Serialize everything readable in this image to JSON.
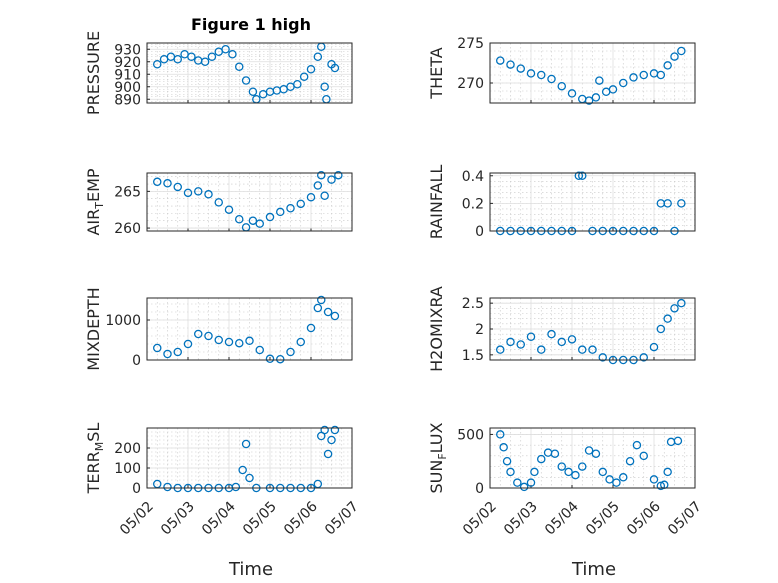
{
  "figure": {
    "title": "Figure 1 high",
    "xlabel": "Time",
    "x_tick_labels": [
      "05/02",
      "05/03",
      "05/04",
      "05/05",
      "05/06",
      "05/07"
    ]
  },
  "chart_data": [
    {
      "type": "scatter",
      "ylabel": "PRESSURE",
      "title": "Figure 1 high",
      "xlim": [
        "05/02 00:00",
        "05/07 00:00"
      ],
      "ylim": [
        887,
        935
      ],
      "yticks": [
        890,
        900,
        910,
        920,
        930
      ],
      "grid": true,
      "marker": "circle",
      "color": "#0072bd",
      "points": [
        [
          "05/02 06:00",
          918
        ],
        [
          "05/02 10:00",
          922
        ],
        [
          "05/02 14:00",
          924
        ],
        [
          "05/02 18:00",
          922
        ],
        [
          "05/02 22:00",
          926
        ],
        [
          "05/03 02:00",
          924
        ],
        [
          "05/03 06:00",
          921
        ],
        [
          "05/03 10:00",
          920
        ],
        [
          "05/03 14:00",
          924
        ],
        [
          "05/03 18:00",
          928
        ],
        [
          "05/03 22:00",
          930
        ],
        [
          "05/04 02:00",
          926
        ],
        [
          "05/04 06:00",
          916
        ],
        [
          "05/04 10:00",
          905
        ],
        [
          "05/04 14:00",
          896
        ],
        [
          "05/04 16:00",
          890
        ],
        [
          "05/04 20:00",
          894
        ],
        [
          "05/05 00:00",
          896
        ],
        [
          "05/05 04:00",
          897
        ],
        [
          "05/05 08:00",
          898
        ],
        [
          "05/05 12:00",
          900
        ],
        [
          "05/05 16:00",
          902
        ],
        [
          "05/05 20:00",
          908
        ],
        [
          "05/06 00:00",
          914
        ],
        [
          "05/06 04:00",
          924
        ],
        [
          "05/06 06:00",
          932
        ],
        [
          "05/06 08:00",
          900
        ],
        [
          "05/06 09:00",
          890
        ],
        [
          "05/06 12:00",
          918
        ],
        [
          "05/06 14:00",
          915
        ]
      ]
    },
    {
      "type": "scatter",
      "ylabel": "THETA",
      "xlim": [
        "05/02 00:00",
        "05/07 00:00"
      ],
      "ylim": [
        267.5,
        275
      ],
      "yticks": [
        270,
        275
      ],
      "grid": true,
      "marker": "circle",
      "color": "#0072bd",
      "points": [
        [
          "05/02 06:00",
          272.8
        ],
        [
          "05/02 12:00",
          272.3
        ],
        [
          "05/02 18:00",
          271.8
        ],
        [
          "05/03 00:00",
          271.2
        ],
        [
          "05/03 06:00",
          271.0
        ],
        [
          "05/03 12:00",
          270.5
        ],
        [
          "05/03 18:00",
          269.6
        ],
        [
          "05/04 00:00",
          268.7
        ],
        [
          "05/04 06:00",
          268.0
        ],
        [
          "05/04 10:00",
          267.8
        ],
        [
          "05/04 14:00",
          268.2
        ],
        [
          "05/04 16:00",
          270.3
        ],
        [
          "05/04 20:00",
          268.9
        ],
        [
          "05/05 00:00",
          269.2
        ],
        [
          "05/05 06:00",
          270.0
        ],
        [
          "05/05 12:00",
          270.7
        ],
        [
          "05/05 18:00",
          271.0
        ],
        [
          "05/06 00:00",
          271.2
        ],
        [
          "05/06 04:00",
          271.0
        ],
        [
          "05/06 08:00",
          272.2
        ],
        [
          "05/06 12:00",
          273.3
        ],
        [
          "05/06 16:00",
          274.0
        ]
      ]
    },
    {
      "type": "scatter",
      "ylabel": "AIR_TEMP",
      "xlim": [
        "05/02 00:00",
        "05/07 00:00"
      ],
      "ylim": [
        259.6,
        267.5
      ],
      "yticks": [
        260,
        265
      ],
      "grid": true,
      "marker": "circle",
      "color": "#0072bd",
      "points": [
        [
          "05/02 06:00",
          266.3
        ],
        [
          "05/02 12:00",
          266.1
        ],
        [
          "05/02 18:00",
          265.6
        ],
        [
          "05/03 00:00",
          264.8
        ],
        [
          "05/03 06:00",
          265.0
        ],
        [
          "05/03 12:00",
          264.6
        ],
        [
          "05/03 18:00",
          263.5
        ],
        [
          "05/04 00:00",
          262.5
        ],
        [
          "05/04 06:00",
          261.2
        ],
        [
          "05/04 10:00",
          260.1
        ],
        [
          "05/04 14:00",
          261.0
        ],
        [
          "05/04 18:00",
          260.6
        ],
        [
          "05/05 00:00",
          261.5
        ],
        [
          "05/05 06:00",
          262.2
        ],
        [
          "05/05 12:00",
          262.7
        ],
        [
          "05/05 18:00",
          263.3
        ],
        [
          "05/06 00:00",
          264.2
        ],
        [
          "05/06 04:00",
          265.8
        ],
        [
          "05/06 06:00",
          267.2
        ],
        [
          "05/06 08:00",
          264.4
        ],
        [
          "05/06 12:00",
          266.6
        ],
        [
          "05/06 16:00",
          267.2
        ]
      ]
    },
    {
      "type": "scatter",
      "ylabel": "RAINFALL",
      "xlim": [
        "05/02 00:00",
        "05/07 00:00"
      ],
      "ylim": [
        0,
        0.42
      ],
      "yticks": [
        0,
        0.2,
        0.4
      ],
      "grid": true,
      "marker": "circle",
      "color": "#0072bd",
      "points": [
        [
          "05/02 06:00",
          0
        ],
        [
          "05/02 12:00",
          0
        ],
        [
          "05/02 18:00",
          0
        ],
        [
          "05/03 00:00",
          0
        ],
        [
          "05/03 06:00",
          0
        ],
        [
          "05/03 12:00",
          0
        ],
        [
          "05/03 18:00",
          0
        ],
        [
          "05/04 00:00",
          0
        ],
        [
          "05/04 04:00",
          0.4
        ],
        [
          "05/04 06:00",
          0.4
        ],
        [
          "05/04 12:00",
          0
        ],
        [
          "05/04 18:00",
          0
        ],
        [
          "05/05 00:00",
          0
        ],
        [
          "05/05 06:00",
          0
        ],
        [
          "05/05 12:00",
          0
        ],
        [
          "05/05 18:00",
          0
        ],
        [
          "05/06 00:00",
          0
        ],
        [
          "05/06 04:00",
          0.2
        ],
        [
          "05/06 08:00",
          0.2
        ],
        [
          "05/06 12:00",
          0
        ],
        [
          "05/06 16:00",
          0.2
        ]
      ]
    },
    {
      "type": "scatter",
      "ylabel": "MIXDEPTH",
      "xlim": [
        "05/02 00:00",
        "05/07 00:00"
      ],
      "ylim": [
        0,
        1550
      ],
      "yticks": [
        0,
        1000
      ],
      "grid": true,
      "marker": "circle",
      "color": "#0072bd",
      "points": [
        [
          "05/02 06:00",
          300
        ],
        [
          "05/02 12:00",
          150
        ],
        [
          "05/02 18:00",
          200
        ],
        [
          "05/03 00:00",
          400
        ],
        [
          "05/03 06:00",
          650
        ],
        [
          "05/03 12:00",
          600
        ],
        [
          "05/03 18:00",
          500
        ],
        [
          "05/04 00:00",
          450
        ],
        [
          "05/04 06:00",
          420
        ],
        [
          "05/04 12:00",
          480
        ],
        [
          "05/04 18:00",
          250
        ],
        [
          "05/05 00:00",
          30
        ],
        [
          "05/05 06:00",
          20
        ],
        [
          "05/05 12:00",
          200
        ],
        [
          "05/05 18:00",
          450
        ],
        [
          "05/06 00:00",
          800
        ],
        [
          "05/06 04:00",
          1300
        ],
        [
          "05/06 06:00",
          1500
        ],
        [
          "05/06 10:00",
          1200
        ],
        [
          "05/06 14:00",
          1100
        ]
      ]
    },
    {
      "type": "scatter",
      "ylabel": "H2OMIXRA",
      "xlim": [
        "05/02 00:00",
        "05/07 00:00"
      ],
      "ylim": [
        1.4,
        2.6
      ],
      "yticks": [
        1.5,
        2,
        2.5
      ],
      "grid": true,
      "marker": "circle",
      "color": "#0072bd",
      "points": [
        [
          "05/02 06:00",
          1.6
        ],
        [
          "05/02 12:00",
          1.75
        ],
        [
          "05/02 18:00",
          1.7
        ],
        [
          "05/03 00:00",
          1.85
        ],
        [
          "05/03 06:00",
          1.6
        ],
        [
          "05/03 12:00",
          1.9
        ],
        [
          "05/03 18:00",
          1.75
        ],
        [
          "05/04 00:00",
          1.8
        ],
        [
          "05/04 06:00",
          1.6
        ],
        [
          "05/04 12:00",
          1.6
        ],
        [
          "05/04 18:00",
          1.45
        ],
        [
          "05/05 00:00",
          1.4
        ],
        [
          "05/05 06:00",
          1.4
        ],
        [
          "05/05 12:00",
          1.4
        ],
        [
          "05/05 18:00",
          1.45
        ],
        [
          "05/06 00:00",
          1.65
        ],
        [
          "05/06 04:00",
          2.0
        ],
        [
          "05/06 08:00",
          2.2
        ],
        [
          "05/06 12:00",
          2.4
        ],
        [
          "05/06 16:00",
          2.5
        ]
      ]
    },
    {
      "type": "scatter",
      "ylabel": "TERR_MSL",
      "xlim": [
        "05/02 00:00",
        "05/07 00:00"
      ],
      "ylim": [
        0,
        300
      ],
      "yticks": [
        0,
        100,
        200
      ],
      "grid": true,
      "marker": "circle",
      "color": "#0072bd",
      "points": [
        [
          "05/02 06:00",
          20
        ],
        [
          "05/02 12:00",
          5
        ],
        [
          "05/02 18:00",
          0
        ],
        [
          "05/03 00:00",
          0
        ],
        [
          "05/03 06:00",
          0
        ],
        [
          "05/03 12:00",
          0
        ],
        [
          "05/03 18:00",
          0
        ],
        [
          "05/04 00:00",
          0
        ],
        [
          "05/04 04:00",
          5
        ],
        [
          "05/04 08:00",
          90
        ],
        [
          "05/04 10:00",
          220
        ],
        [
          "05/04 12:00",
          50
        ],
        [
          "05/04 16:00",
          0
        ],
        [
          "05/05 00:00",
          0
        ],
        [
          "05/05 06:00",
          0
        ],
        [
          "05/05 12:00",
          0
        ],
        [
          "05/05 18:00",
          0
        ],
        [
          "05/06 00:00",
          0
        ],
        [
          "05/06 04:00",
          20
        ],
        [
          "05/06 06:00",
          260
        ],
        [
          "05/06 08:00",
          290
        ],
        [
          "05/06 10:00",
          170
        ],
        [
          "05/06 12:00",
          240
        ],
        [
          "05/06 14:00",
          290
        ]
      ]
    },
    {
      "type": "scatter",
      "ylabel": "SUN_FLUX",
      "xlim": [
        "05/02 00:00",
        "05/07 00:00"
      ],
      "ylim": [
        0,
        560
      ],
      "yticks": [
        0,
        500
      ],
      "grid": true,
      "marker": "circle",
      "color": "#0072bd",
      "points": [
        [
          "05/02 06:00",
          500
        ],
        [
          "05/02 08:00",
          380
        ],
        [
          "05/02 10:00",
          250
        ],
        [
          "05/02 12:00",
          150
        ],
        [
          "05/02 16:00",
          50
        ],
        [
          "05/02 20:00",
          10
        ],
        [
          "05/03 00:00",
          50
        ],
        [
          "05/03 02:00",
          150
        ],
        [
          "05/03 06:00",
          270
        ],
        [
          "05/03 10:00",
          330
        ],
        [
          "05/03 14:00",
          320
        ],
        [
          "05/03 18:00",
          200
        ],
        [
          "05/03 22:00",
          150
        ],
        [
          "05/04 02:00",
          120
        ],
        [
          "05/04 06:00",
          200
        ],
        [
          "05/04 10:00",
          350
        ],
        [
          "05/04 14:00",
          320
        ],
        [
          "05/04 18:00",
          150
        ],
        [
          "05/04 22:00",
          80
        ],
        [
          "05/05 02:00",
          50
        ],
        [
          "05/05 06:00",
          100
        ],
        [
          "05/05 10:00",
          250
        ],
        [
          "05/05 14:00",
          400
        ],
        [
          "05/05 18:00",
          300
        ],
        [
          "05/06 00:00",
          80
        ],
        [
          "05/06 04:00",
          20
        ],
        [
          "05/06 06:00",
          30
        ],
        [
          "05/06 08:00",
          150
        ],
        [
          "05/06 10:00",
          430
        ],
        [
          "05/06 14:00",
          440
        ]
      ]
    }
  ]
}
